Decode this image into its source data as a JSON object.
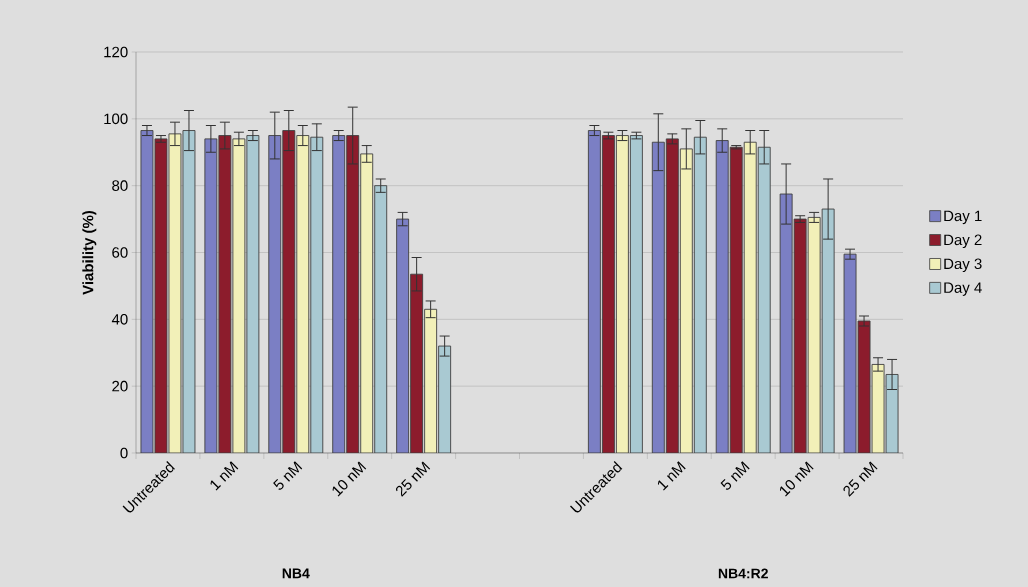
{
  "chart_data": {
    "type": "bar",
    "ylabel": "Viability (%)",
    "categories": [
      "Untreated",
      "1 nM",
      "5 nM",
      "10 nM",
      "25 nM",
      null,
      null,
      "Untreated",
      "1 nM",
      "5 nM",
      "10 nM",
      "25 nM"
    ],
    "series": [
      {
        "name": "Day 1",
        "color": "#7b7fc4",
        "values": [
          96.5,
          94,
          95,
          95,
          70,
          null,
          null,
          96.5,
          93,
          93.5,
          77.5,
          59.5
        ],
        "errors": [
          1.5,
          4,
          7,
          1.5,
          2,
          null,
          null,
          1.5,
          8.5,
          3.5,
          9,
          1.5
        ]
      },
      {
        "name": "Day 2",
        "color": "#8c1c2c",
        "values": [
          94,
          95,
          96.5,
          95,
          53.5,
          null,
          null,
          95,
          94,
          91.5,
          70,
          39.5
        ],
        "errors": [
          1,
          4,
          6,
          8.5,
          5,
          null,
          null,
          1,
          1.5,
          0.5,
          1,
          1.5
        ]
      },
      {
        "name": "Day 3",
        "color": "#f2f0b8",
        "values": [
          95.5,
          94,
          95,
          89.5,
          43,
          null,
          null,
          95,
          91,
          93,
          70.5,
          26.5
        ],
        "errors": [
          3.5,
          2,
          3,
          2.5,
          2.5,
          null,
          null,
          1.5,
          6,
          3.5,
          1.5,
          2
        ]
      },
      {
        "name": "Day 4",
        "color": "#a9c9d2",
        "values": [
          96.5,
          95,
          94.5,
          80,
          32,
          null,
          null,
          95,
          94.5,
          91.5,
          73,
          23.5
        ],
        "errors": [
          6,
          1.5,
          4,
          2,
          3,
          null,
          null,
          1,
          5,
          5,
          9,
          4.5
        ]
      }
    ],
    "ylim": [
      0,
      120
    ],
    "yticks": [
      0,
      20,
      40,
      60,
      80,
      100,
      120
    ],
    "grid": "y",
    "legend": "right",
    "annotations": [
      "NB4",
      "NB4:R2"
    ]
  }
}
